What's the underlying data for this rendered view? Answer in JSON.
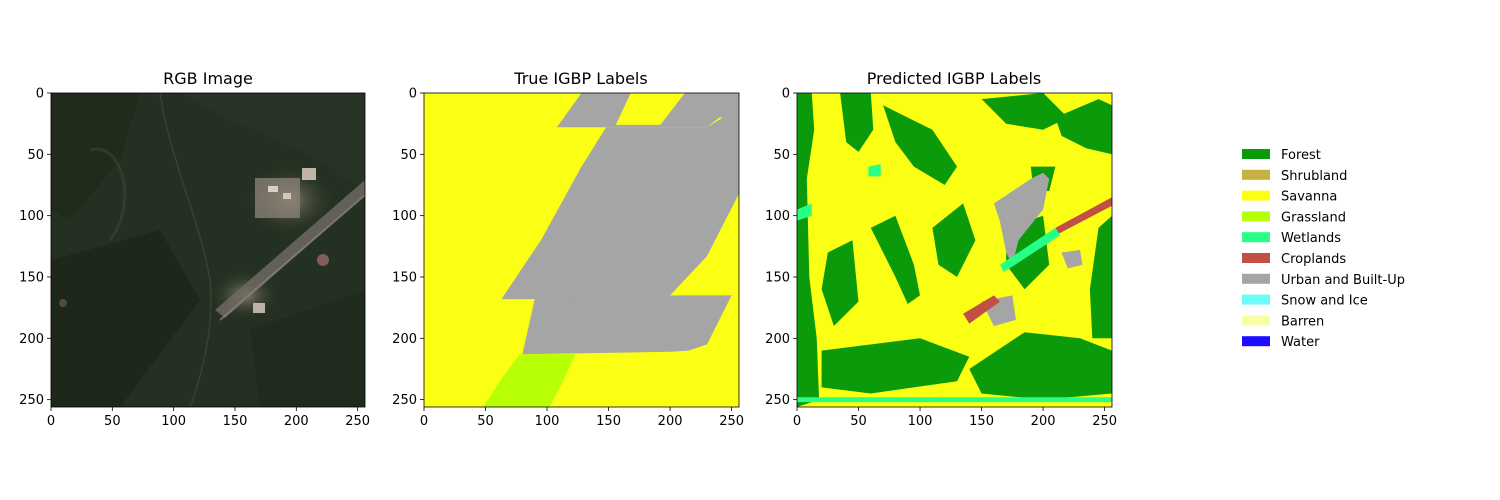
{
  "chart_data": [
    {
      "type": "heatmap",
      "title": "RGB Image",
      "xlim": [
        0,
        256
      ],
      "ylim": [
        256,
        0
      ],
      "xticks": [
        0,
        50,
        100,
        150,
        200,
        250
      ],
      "yticks": [
        0,
        50,
        100,
        150,
        200,
        250
      ],
      "xtick_labels": [
        "0",
        "50",
        "100",
        "150",
        "200",
        "250"
      ],
      "ytick_labels": [
        "0",
        "50",
        "100",
        "150",
        "200",
        "250"
      ],
      "content": "satellite RGB image"
    },
    {
      "type": "heatmap",
      "title": "True IGBP Labels",
      "xlim": [
        0,
        256
      ],
      "ylim": [
        256,
        0
      ],
      "xticks": [
        0,
        50,
        100,
        150,
        200,
        250
      ],
      "yticks": [
        0,
        50,
        100,
        150,
        200,
        250
      ],
      "xtick_labels": [
        "0",
        "50",
        "100",
        "150",
        "200",
        "250"
      ],
      "ytick_labels": [
        "0",
        "50",
        "100",
        "150",
        "200",
        "250"
      ],
      "background_class": "Savanna",
      "regions": [
        {
          "class": "Urban and Built-Up",
          "polygon": [
            [
              108,
              28
            ],
            [
              128,
              0
            ],
            [
              168,
              0
            ],
            [
              155,
              28
            ]
          ]
        },
        {
          "class": "Urban and Built-Up",
          "polygon": [
            [
              152,
              26
            ],
            [
              192,
              26
            ],
            [
              212,
              0
            ],
            [
              256,
              0
            ],
            [
              256,
              20
            ],
            [
              240,
              20
            ],
            [
              230,
              28
            ],
            [
              152,
              28
            ]
          ]
        },
        {
          "class": "Urban and Built-Up",
          "polygon": [
            [
              148,
              28
            ],
            [
              230,
              28
            ],
            [
              256,
              12
            ],
            [
              256,
              82
            ],
            [
              230,
              133
            ],
            [
              200,
              165
            ],
            [
              175,
              166
            ],
            [
              155,
              168
            ],
            [
              63,
              168
            ],
            [
              95,
              120
            ],
            [
              128,
              60
            ]
          ]
        },
        {
          "class": "Urban and Built-Up",
          "polygon": [
            [
              90,
              168
            ],
            [
              200,
              165
            ],
            [
              250,
              165
            ],
            [
              230,
              205
            ],
            [
              215,
              210
            ],
            [
              200,
              211
            ],
            [
              80,
              213
            ]
          ]
        },
        {
          "class": "Grassland",
          "polygon": [
            [
              78,
              213
            ],
            [
              123,
              213
            ],
            [
              112,
              237
            ],
            [
              102,
              256
            ],
            [
              48,
              256
            ],
            [
              65,
              230
            ]
          ]
        }
      ]
    },
    {
      "type": "heatmap",
      "title": "Predicted IGBP Labels",
      "xlim": [
        0,
        256
      ],
      "ylim": [
        256,
        0
      ],
      "xticks": [
        0,
        50,
        100,
        150,
        200,
        250
      ],
      "yticks": [
        0,
        50,
        100,
        150,
        200,
        250
      ],
      "xtick_labels": [
        "0",
        "50",
        "100",
        "150",
        "200",
        "250"
      ],
      "ytick_labels": [
        "0",
        "50",
        "100",
        "150",
        "200",
        "250"
      ],
      "background_class": "Savanna",
      "regions": [
        {
          "class": "Forest",
          "polygon": [
            [
              0,
              0
            ],
            [
              12,
              0
            ],
            [
              14,
              30
            ],
            [
              8,
              70
            ],
            [
              10,
              150
            ],
            [
              16,
              200
            ],
            [
              18,
              250
            ],
            [
              0,
              256
            ]
          ]
        },
        {
          "class": "Forest",
          "polygon": [
            [
              35,
              0
            ],
            [
              60,
              0
            ],
            [
              62,
              30
            ],
            [
              50,
              48
            ],
            [
              40,
              40
            ]
          ]
        },
        {
          "class": "Forest",
          "polygon": [
            [
              70,
              10
            ],
            [
              110,
              30
            ],
            [
              130,
              60
            ],
            [
              120,
              75
            ],
            [
              95,
              60
            ],
            [
              80,
              40
            ]
          ]
        },
        {
          "class": "Forest",
          "polygon": [
            [
              150,
              5
            ],
            [
              200,
              0
            ],
            [
              220,
              20
            ],
            [
              200,
              30
            ],
            [
              170,
              25
            ]
          ]
        },
        {
          "class": "Forest",
          "polygon": [
            [
              210,
              20
            ],
            [
              245,
              5
            ],
            [
              256,
              10
            ],
            [
              256,
              50
            ],
            [
              235,
              45
            ],
            [
              215,
              35
            ]
          ]
        },
        {
          "class": "Forest",
          "polygon": [
            [
              60,
              110
            ],
            [
              80,
              100
            ],
            [
              95,
              140
            ],
            [
              100,
              165
            ],
            [
              90,
              172
            ],
            [
              80,
              150
            ]
          ]
        },
        {
          "class": "Forest",
          "polygon": [
            [
              25,
              130
            ],
            [
              45,
              120
            ],
            [
              50,
              170
            ],
            [
              30,
              190
            ],
            [
              20,
              160
            ]
          ]
        },
        {
          "class": "Forest",
          "polygon": [
            [
              110,
              110
            ],
            [
              135,
              90
            ],
            [
              145,
              120
            ],
            [
              130,
              150
            ],
            [
              115,
              140
            ]
          ]
        },
        {
          "class": "Forest",
          "polygon": [
            [
              170,
              110
            ],
            [
              200,
              100
            ],
            [
              205,
              140
            ],
            [
              185,
              160
            ],
            [
              170,
              140
            ]
          ]
        },
        {
          "class": "Forest",
          "polygon": [
            [
              245,
              110
            ],
            [
              256,
              100
            ],
            [
              256,
              200
            ],
            [
              240,
              200
            ],
            [
              238,
              160
            ]
          ]
        },
        {
          "class": "Forest",
          "polygon": [
            [
              20,
              210
            ],
            [
              100,
              200
            ],
            [
              140,
              215
            ],
            [
              130,
              235
            ],
            [
              60,
              245
            ],
            [
              20,
              240
            ]
          ]
        },
        {
          "class": "Forest",
          "polygon": [
            [
              140,
              225
            ],
            [
              185,
              195
            ],
            [
              230,
              200
            ],
            [
              256,
              210
            ],
            [
              256,
              245
            ],
            [
              200,
              250
            ],
            [
              150,
              245
            ]
          ]
        },
        {
          "class": "Forest",
          "polygon": [
            [
              190,
              60
            ],
            [
              210,
              60
            ],
            [
              205,
              80
            ],
            [
              192,
              78
            ]
          ]
        },
        {
          "class": "Urban and Built-Up",
          "polygon": [
            [
              160,
              90
            ],
            [
              190,
              70
            ],
            [
              200,
              65
            ],
            [
              205,
              70
            ],
            [
              200,
              95
            ],
            [
              180,
              120
            ],
            [
              175,
              140
            ],
            [
              170,
              130
            ],
            [
              165,
              105
            ]
          ]
        },
        {
          "class": "Urban and Built-Up",
          "polygon": [
            [
              215,
              130
            ],
            [
              230,
              128
            ],
            [
              232,
              140
            ],
            [
              220,
              143
            ]
          ]
        },
        {
          "class": "Urban and Built-Up",
          "polygon": [
            [
              150,
              170
            ],
            [
              175,
              165
            ],
            [
              178,
              185
            ],
            [
              160,
              190
            ]
          ]
        },
        {
          "class": "Croplands",
          "polygon": [
            [
              210,
              110
            ],
            [
              256,
              85
            ],
            [
              256,
              92
            ],
            [
              212,
              115
            ]
          ]
        },
        {
          "class": "Croplands",
          "polygon": [
            [
              135,
              180
            ],
            [
              160,
              165
            ],
            [
              165,
              170
            ],
            [
              140,
              188
            ]
          ]
        },
        {
          "class": "Wetlands",
          "polygon": [
            [
              165,
              140
            ],
            [
              210,
              110
            ],
            [
              214,
              116
            ],
            [
              168,
              146
            ]
          ]
        },
        {
          "class": "Wetlands",
          "polygon": [
            [
              58,
              60
            ],
            [
              68,
              58
            ],
            [
              68,
              68
            ],
            [
              58,
              68
            ]
          ]
        },
        {
          "class": "Wetlands",
          "polygon": [
            [
              0,
              248
            ],
            [
              256,
              248
            ],
            [
              256,
              252
            ],
            [
              0,
              252
            ]
          ]
        },
        {
          "class": "Wetlands",
          "polygon": [
            [
              0,
              95
            ],
            [
              12,
              90
            ],
            [
              12,
              100
            ],
            [
              0,
              104
            ]
          ]
        }
      ]
    }
  ],
  "legend": {
    "placement": "right",
    "items": [
      {
        "label": "Forest",
        "color": "#0a9a0a"
      },
      {
        "label": "Shrubland",
        "color": "#c6b044"
      },
      {
        "label": "Savanna",
        "color": "#fbff13"
      },
      {
        "label": "Grassland",
        "color": "#b6ff05"
      },
      {
        "label": "Wetlands",
        "color": "#27ff87"
      },
      {
        "label": "Croplands",
        "color": "#c24f44"
      },
      {
        "label": "Urban and Built-Up",
        "color": "#a5a5a5"
      },
      {
        "label": "Snow and Ice",
        "color": "#69fff8"
      },
      {
        "label": "Barren",
        "color": "#f9ffa4"
      },
      {
        "label": "Water",
        "color": "#1c0dff"
      }
    ]
  }
}
